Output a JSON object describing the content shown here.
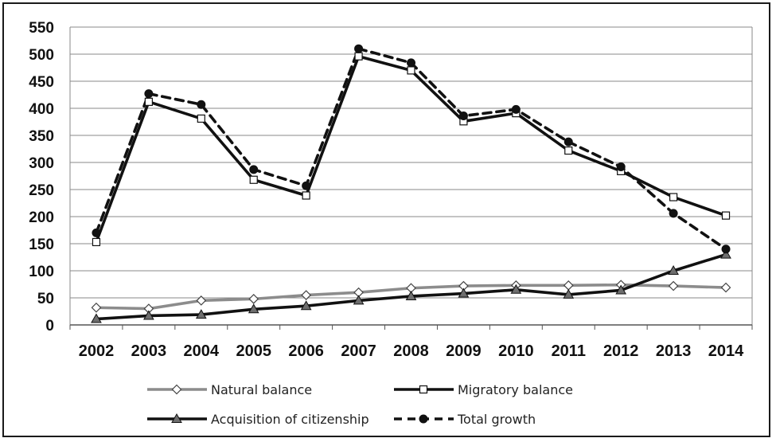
{
  "chart_data": {
    "type": "line",
    "title": "",
    "xlabel": "",
    "ylabel": "",
    "ylim": [
      0,
      550
    ],
    "yticks": [
      "0",
      "50",
      "100",
      "150",
      "200",
      "250",
      "300",
      "350",
      "400",
      "450",
      "500",
      "550"
    ],
    "grid": "horizontal",
    "legend_position": "bottom",
    "categories": [
      "2002",
      "2003",
      "2004",
      "2005",
      "2006",
      "2007",
      "2008",
      "2009",
      "2010",
      "2011",
      "2012",
      "2013",
      "2014"
    ],
    "series": [
      {
        "name": "Natural balance",
        "color": "#8c8c8c",
        "line_style": "solid",
        "marker": "diamond-open",
        "values": [
          32,
          30,
          45,
          48,
          55,
          60,
          68,
          72,
          73,
          73,
          74,
          72,
          69
        ]
      },
      {
        "name": "Migratory balance",
        "color": "#111111",
        "line_style": "solid",
        "marker": "square-open",
        "values": [
          153,
          412,
          381,
          268,
          239,
          496,
          470,
          376,
          391,
          322,
          284,
          236,
          202
        ]
      },
      {
        "name": "Acquisition of citizenship",
        "color": "#111111",
        "line_style": "solid",
        "marker": "triangle-filled",
        "values": [
          11,
          17,
          19,
          29,
          35,
          45,
          53,
          58,
          65,
          56,
          64,
          100,
          130
        ]
      },
      {
        "name": "Total growth",
        "color": "#111111",
        "line_style": "dashed",
        "marker": "circle-filled",
        "values": [
          170,
          427,
          407,
          287,
          257,
          510,
          484,
          386,
          398,
          338,
          292,
          206,
          140
        ]
      }
    ]
  }
}
